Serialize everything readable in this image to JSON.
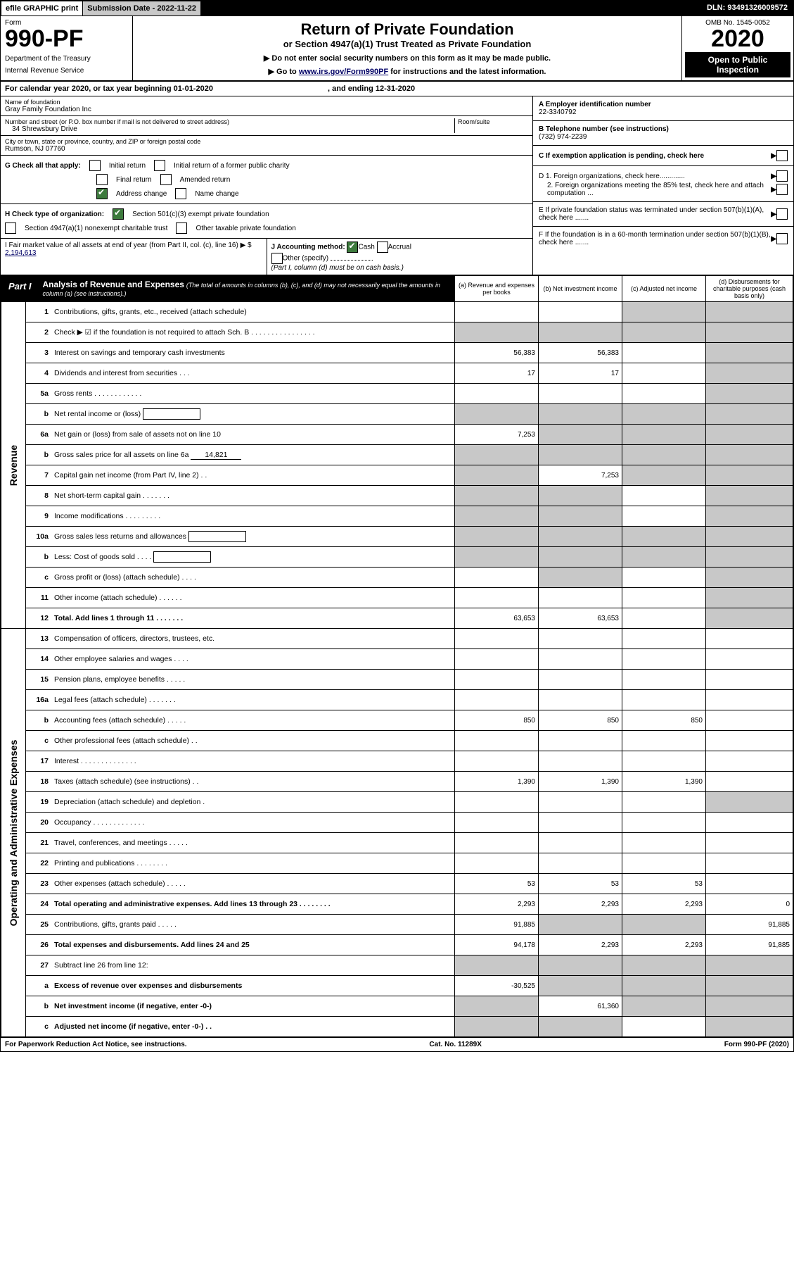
{
  "topbar": {
    "efile": "efile GRAPHIC print",
    "submission": "Submission Date - 2022-11-22",
    "dln": "DLN: 93491326009572"
  },
  "formhead": {
    "form": "Form",
    "fno": "990-PF",
    "dept": "Department of the Treasury",
    "irs": "Internal Revenue Service",
    "title": "Return of Private Foundation",
    "subtitle": "or Section 4947(a)(1) Trust Treated as Private Foundation",
    "note1": "▶ Do not enter social security numbers on this form as it may be made public.",
    "note2": "▶ Go to",
    "note2link": "www.irs.gov/Form990PF",
    "note2b": "for instructions and the latest information.",
    "omb": "OMB No. 1545-0052",
    "year": "2020",
    "open": "Open to Public Inspection"
  },
  "calyear": {
    "pre": "For calendar year 2020, or tax year beginning",
    "beg": "01-01-2020",
    "mid": ", and ending",
    "end": "12-31-2020"
  },
  "id": {
    "name_lbl": "Name of foundation",
    "name": "Gray Family Foundation Inc",
    "addr_lbl": "Number and street (or P.O. box number if mail is not delivered to street address)",
    "addr": "34 Shrewsbury Drive",
    "room_lbl": "Room/suite",
    "room": "",
    "city_lbl": "City or town, state or province, country, and ZIP or foreign postal code",
    "city": "Rumson, NJ  07760",
    "a_lbl": "A Employer identification number",
    "a": "22-3340792",
    "b_lbl": "B Telephone number (see instructions)",
    "b": "(732) 974-2239",
    "c_lbl": "C If exemption application is pending, check here",
    "d1": "D 1. Foreign organizations, check here.............",
    "d2": "2. Foreign organizations meeting the 85% test, check here and attach computation ...",
    "e": "E If private foundation status was terminated under section 507(b)(1)(A), check here .......",
    "f": "F If the foundation is in a 60-month termination under section 507(b)(1)(B), check here ......."
  },
  "g": {
    "label": "G Check all that apply:",
    "initial": "Initial return",
    "initial_former": "Initial return of a former public charity",
    "final": "Final return",
    "amended": "Amended return",
    "address_change": "Address change",
    "name_change": "Name change"
  },
  "h": {
    "label": "H Check type of organization:",
    "s501": "Section 501(c)(3) exempt private foundation",
    "s4947": "Section 4947(a)(1) nonexempt charitable trust",
    "other": "Other taxable private foundation"
  },
  "i": {
    "label": "I Fair market value of all assets at end of year (from Part II, col. (c), line 16) ▶ $",
    "val": "2,194,613"
  },
  "j": {
    "label": "J Accounting method:",
    "cash": "Cash",
    "accrual": "Accrual",
    "other": "Other (specify)",
    "note": "(Part I, column (d) must be on cash basis.)"
  },
  "part1": {
    "tag": "Part I",
    "title": "Analysis of Revenue and Expenses",
    "note": "(The total of amounts in columns (b), (c), and (d) may not necessarily equal the amounts in column (a) (see instructions).)"
  },
  "cols": {
    "a": "(a) Revenue and expenses per books",
    "b": "(b) Net investment income",
    "c": "(c) Adjusted net income",
    "d": "(d) Disbursements for charitable purposes (cash basis only)"
  },
  "revlabel": "Revenue",
  "oplabel": "Operating and Administrative Expenses",
  "rows": [
    {
      "n": "1",
      "l": "Contributions, gifts, grants, etc., received (attach schedule)",
      "a": "",
      "b": "",
      "c": "shade",
      "d": "shade"
    },
    {
      "n": "2",
      "l": "Check ▶ ☑ if the foundation is not required to attach Sch. B  . . . . . . . . . . . . . . . .",
      "a": "shade",
      "b": "shade",
      "c": "shade",
      "d": "shade"
    },
    {
      "n": "3",
      "l": "Interest on savings and temporary cash investments",
      "a": "56,383",
      "b": "56,383",
      "c": "",
      "d": "shade"
    },
    {
      "n": "4",
      "l": "Dividends and interest from securities  . . .",
      "a": "17",
      "b": "17",
      "c": "",
      "d": "shade"
    },
    {
      "n": "5a",
      "l": "Gross rents  . . . . . . . . . . . .",
      "a": "",
      "b": "",
      "c": "",
      "d": "shade"
    },
    {
      "n": "b",
      "l": "Net rental income or (loss)",
      "a": "shade",
      "b": "shade",
      "c": "shade",
      "d": "shade",
      "inline": true
    },
    {
      "n": "6a",
      "l": "Net gain or (loss) from sale of assets not on line 10",
      "a": "7,253",
      "b": "shade",
      "c": "shade",
      "d": "shade"
    },
    {
      "n": "b",
      "l": "Gross sales price for all assets on line 6a",
      "a": "shade",
      "b": "shade",
      "c": "shade",
      "d": "shade",
      "inlineval": "14,821"
    },
    {
      "n": "7",
      "l": "Capital gain net income (from Part IV, line 2)  . .",
      "a": "shade",
      "b": "7,253",
      "c": "shade",
      "d": "shade"
    },
    {
      "n": "8",
      "l": "Net short-term capital gain  . . . . . . .",
      "a": "shade",
      "b": "shade",
      "c": "",
      "d": "shade"
    },
    {
      "n": "9",
      "l": "Income modifications  . . . . . . . . .",
      "a": "shade",
      "b": "shade",
      "c": "",
      "d": "shade"
    },
    {
      "n": "10a",
      "l": "Gross sales less returns and allowances",
      "a": "shade",
      "b": "shade",
      "c": "shade",
      "d": "shade",
      "inline": true
    },
    {
      "n": "b",
      "l": "Less: Cost of goods sold  . . . .",
      "a": "shade",
      "b": "shade",
      "c": "shade",
      "d": "shade",
      "inline": true
    },
    {
      "n": "c",
      "l": "Gross profit or (loss) (attach schedule)  . . . .",
      "a": "",
      "b": "shade",
      "c": "",
      "d": "shade"
    },
    {
      "n": "11",
      "l": "Other income (attach schedule)  . . . . . .",
      "a": "",
      "b": "",
      "c": "",
      "d": "shade"
    },
    {
      "n": "12",
      "l": "Total. Add lines 1 through 11  . . . . . . .",
      "a": "63,653",
      "b": "63,653",
      "c": "",
      "d": "shade",
      "bold": true
    },
    {
      "n": "13",
      "l": "Compensation of officers, directors, trustees, etc.",
      "a": "",
      "b": "",
      "c": "",
      "d": ""
    },
    {
      "n": "14",
      "l": "Other employee salaries and wages  . . . .",
      "a": "",
      "b": "",
      "c": "",
      "d": ""
    },
    {
      "n": "15",
      "l": "Pension plans, employee benefits  . . . . .",
      "a": "",
      "b": "",
      "c": "",
      "d": ""
    },
    {
      "n": "16a",
      "l": "Legal fees (attach schedule)  . . . . . . .",
      "a": "",
      "b": "",
      "c": "",
      "d": ""
    },
    {
      "n": "b",
      "l": "Accounting fees (attach schedule)  . . . . .",
      "a": "850",
      "b": "850",
      "c": "850",
      "d": ""
    },
    {
      "n": "c",
      "l": "Other professional fees (attach schedule)  . .",
      "a": "",
      "b": "",
      "c": "",
      "d": ""
    },
    {
      "n": "17",
      "l": "Interest  . . . . . . . . . . . . . .",
      "a": "",
      "b": "",
      "c": "",
      "d": ""
    },
    {
      "n": "18",
      "l": "Taxes (attach schedule) (see instructions)  . .",
      "a": "1,390",
      "b": "1,390",
      "c": "1,390",
      "d": ""
    },
    {
      "n": "19",
      "l": "Depreciation (attach schedule) and depletion  .",
      "a": "",
      "b": "",
      "c": "",
      "d": "shade"
    },
    {
      "n": "20",
      "l": "Occupancy  . . . . . . . . . . . . .",
      "a": "",
      "b": "",
      "c": "",
      "d": ""
    },
    {
      "n": "21",
      "l": "Travel, conferences, and meetings  . . . . .",
      "a": "",
      "b": "",
      "c": "",
      "d": ""
    },
    {
      "n": "22",
      "l": "Printing and publications  . . . . . . . .",
      "a": "",
      "b": "",
      "c": "",
      "d": ""
    },
    {
      "n": "23",
      "l": "Other expenses (attach schedule)  . . . . .",
      "a": "53",
      "b": "53",
      "c": "53",
      "d": ""
    },
    {
      "n": "24",
      "l": "Total operating and administrative expenses. Add lines 13 through 23  . . . . . . . .",
      "a": "2,293",
      "b": "2,293",
      "c": "2,293",
      "d": "0",
      "bold": true
    },
    {
      "n": "25",
      "l": "Contributions, gifts, grants paid  . . . . .",
      "a": "91,885",
      "b": "shade",
      "c": "shade",
      "d": "91,885"
    },
    {
      "n": "26",
      "l": "Total expenses and disbursements. Add lines 24 and 25",
      "a": "94,178",
      "b": "2,293",
      "c": "2,293",
      "d": "91,885",
      "bold": true
    },
    {
      "n": "27",
      "l": "Subtract line 26 from line 12:",
      "a": "shade",
      "b": "shade",
      "c": "shade",
      "d": "shade"
    },
    {
      "n": "a",
      "l": "Excess of revenue over expenses and disbursements",
      "a": "-30,525",
      "b": "shade",
      "c": "shade",
      "d": "shade",
      "bold": true
    },
    {
      "n": "b",
      "l": "Net investment income (if negative, enter -0-)",
      "a": "shade",
      "b": "61,360",
      "c": "shade",
      "d": "shade",
      "bold": true
    },
    {
      "n": "c",
      "l": "Adjusted net income (if negative, enter -0-)  . .",
      "a": "shade",
      "b": "shade",
      "c": "",
      "d": "shade",
      "bold": true
    }
  ],
  "footer": {
    "left": "For Paperwork Reduction Act Notice, see instructions.",
    "mid": "Cat. No. 11289X",
    "right": "Form 990-PF (2020)"
  }
}
